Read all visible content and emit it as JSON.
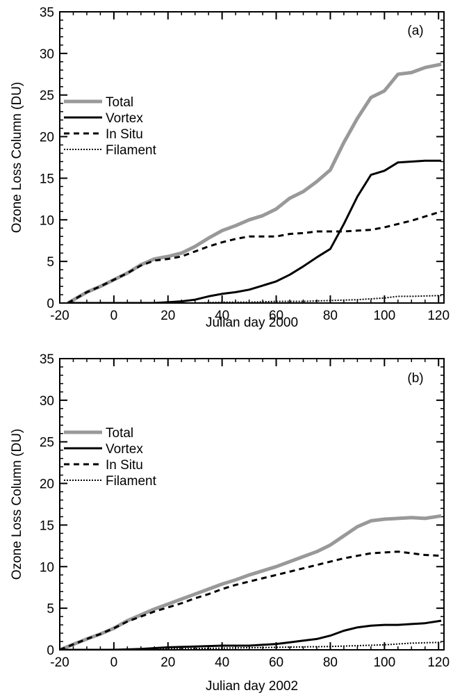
{
  "chart_data": [
    {
      "type": "line",
      "panel_label": "(a)",
      "xlabel": "Julian day 2000",
      "ylabel": "Ozone Loss Column (DU)",
      "xlim": [
        -20,
        122
      ],
      "ylim": [
        0,
        35
      ],
      "xticks": [
        -20,
        0,
        20,
        40,
        60,
        80,
        100,
        120
      ],
      "yticks": [
        0,
        5,
        10,
        15,
        20,
        25,
        30,
        35
      ],
      "legend_position": "left",
      "series": [
        {
          "name": "Total",
          "color": "#999999",
          "style": "solid-thick",
          "points": [
            [
              -17,
              0
            ],
            [
              -10,
              1.3
            ],
            [
              -5,
              2
            ],
            [
              0,
              2.8
            ],
            [
              5,
              3.6
            ],
            [
              10,
              4.6
            ],
            [
              15,
              5.3
            ],
            [
              20,
              5.6
            ],
            [
              25,
              6
            ],
            [
              30,
              6.8
            ],
            [
              35,
              7.8
            ],
            [
              40,
              8.7
            ],
            [
              45,
              9.3
            ],
            [
              50,
              10
            ],
            [
              55,
              10.5
            ],
            [
              60,
              11.3
            ],
            [
              65,
              12.6
            ],
            [
              70,
              13.4
            ],
            [
              75,
              14.6
            ],
            [
              80,
              16
            ],
            [
              85,
              19.3
            ],
            [
              90,
              22.2
            ],
            [
              95,
              24.7
            ],
            [
              100,
              25.5
            ],
            [
              105,
              27.5
            ],
            [
              110,
              27.7
            ],
            [
              115,
              28.3
            ],
            [
              121,
              28.7
            ]
          ]
        },
        {
          "name": "Vortex",
          "color": "#000000",
          "style": "solid",
          "points": [
            [
              -17,
              0
            ],
            [
              0,
              0
            ],
            [
              15,
              0
            ],
            [
              25,
              0.2
            ],
            [
              30,
              0.4
            ],
            [
              35,
              0.8
            ],
            [
              40,
              1.1
            ],
            [
              45,
              1.3
            ],
            [
              50,
              1.6
            ],
            [
              55,
              2.1
            ],
            [
              60,
              2.6
            ],
            [
              65,
              3.4
            ],
            [
              70,
              4.4
            ],
            [
              75,
              5.5
            ],
            [
              80,
              6.5
            ],
            [
              85,
              9.5
            ],
            [
              90,
              12.8
            ],
            [
              95,
              15.4
            ],
            [
              100,
              15.9
            ],
            [
              105,
              16.9
            ],
            [
              110,
              17
            ],
            [
              115,
              17.1
            ],
            [
              121,
              17.1
            ]
          ]
        },
        {
          "name": "In Situ",
          "color": "#000000",
          "style": "dashed",
          "points": [
            [
              -17,
              0
            ],
            [
              -10,
              1.3
            ],
            [
              -5,
              2
            ],
            [
              0,
              2.8
            ],
            [
              5,
              3.6
            ],
            [
              10,
              4.5
            ],
            [
              15,
              5.1
            ],
            [
              20,
              5.3
            ],
            [
              25,
              5.6
            ],
            [
              30,
              6.2
            ],
            [
              35,
              6.8
            ],
            [
              40,
              7.3
            ],
            [
              45,
              7.7
            ],
            [
              50,
              8
            ],
            [
              55,
              8
            ],
            [
              60,
              8
            ],
            [
              65,
              8.3
            ],
            [
              70,
              8.4
            ],
            [
              75,
              8.6
            ],
            [
              80,
              8.6
            ],
            [
              85,
              8.6
            ],
            [
              90,
              8.7
            ],
            [
              95,
              8.8
            ],
            [
              100,
              9.1
            ],
            [
              105,
              9.5
            ],
            [
              110,
              9.9
            ],
            [
              115,
              10.4
            ],
            [
              121,
              11
            ]
          ]
        },
        {
          "name": "Filament",
          "color": "#000000",
          "style": "dotted",
          "points": [
            [
              -17,
              0
            ],
            [
              30,
              0
            ],
            [
              40,
              0.1
            ],
            [
              50,
              0.1
            ],
            [
              60,
              0.2
            ],
            [
              70,
              0.2
            ],
            [
              80,
              0.3
            ],
            [
              90,
              0.4
            ],
            [
              100,
              0.6
            ],
            [
              105,
              0.8
            ],
            [
              110,
              0.8
            ],
            [
              121,
              0.9
            ]
          ]
        }
      ]
    },
    {
      "type": "line",
      "panel_label": "(b)",
      "xlabel": "Julian day 2002",
      "ylabel": "Ozone Loss Column (DU)",
      "xlim": [
        -20,
        122
      ],
      "ylim": [
        0,
        35
      ],
      "xticks": [
        -20,
        0,
        20,
        40,
        60,
        80,
        100,
        120
      ],
      "yticks": [
        0,
        5,
        10,
        15,
        20,
        25,
        30,
        35
      ],
      "legend_position": "left",
      "series": [
        {
          "name": "Total",
          "color": "#999999",
          "style": "solid-thick",
          "points": [
            [
              -20,
              0
            ],
            [
              -10,
              1.3
            ],
            [
              -5,
              1.9
            ],
            [
              0,
              2.6
            ],
            [
              5,
              3.5
            ],
            [
              10,
              4.2
            ],
            [
              15,
              4.9
            ],
            [
              20,
              5.5
            ],
            [
              25,
              6.1
            ],
            [
              30,
              6.7
            ],
            [
              35,
              7.3
            ],
            [
              40,
              7.9
            ],
            [
              45,
              8.4
            ],
            [
              50,
              9
            ],
            [
              55,
              9.5
            ],
            [
              60,
              10
            ],
            [
              65,
              10.6
            ],
            [
              70,
              11.2
            ],
            [
              75,
              11.8
            ],
            [
              80,
              12.6
            ],
            [
              85,
              13.7
            ],
            [
              90,
              14.8
            ],
            [
              95,
              15.5
            ],
            [
              100,
              15.7
            ],
            [
              105,
              15.8
            ],
            [
              110,
              15.9
            ],
            [
              115,
              15.8
            ],
            [
              121,
              16.1
            ]
          ]
        },
        {
          "name": "Vortex",
          "color": "#000000",
          "style": "solid",
          "points": [
            [
              -20,
              0
            ],
            [
              0,
              0
            ],
            [
              10,
              0.1
            ],
            [
              20,
              0.3
            ],
            [
              30,
              0.4
            ],
            [
              40,
              0.5
            ],
            [
              50,
              0.5
            ],
            [
              55,
              0.6
            ],
            [
              60,
              0.7
            ],
            [
              65,
              0.9
            ],
            [
              70,
              1.1
            ],
            [
              75,
              1.3
            ],
            [
              80,
              1.7
            ],
            [
              85,
              2.3
            ],
            [
              90,
              2.7
            ],
            [
              95,
              2.9
            ],
            [
              100,
              3
            ],
            [
              105,
              3
            ],
            [
              110,
              3.1
            ],
            [
              115,
              3.2
            ],
            [
              121,
              3.5
            ]
          ]
        },
        {
          "name": "In Situ",
          "color": "#000000",
          "style": "dashed",
          "points": [
            [
              -20,
              0
            ],
            [
              -10,
              1.3
            ],
            [
              -5,
              1.9
            ],
            [
              0,
              2.6
            ],
            [
              5,
              3.4
            ],
            [
              10,
              4
            ],
            [
              15,
              4.6
            ],
            [
              20,
              5.1
            ],
            [
              25,
              5.6
            ],
            [
              30,
              6.2
            ],
            [
              35,
              6.7
            ],
            [
              40,
              7.3
            ],
            [
              45,
              7.8
            ],
            [
              50,
              8.2
            ],
            [
              55,
              8.6
            ],
            [
              60,
              9
            ],
            [
              65,
              9.4
            ],
            [
              70,
              9.8
            ],
            [
              75,
              10.2
            ],
            [
              80,
              10.6
            ],
            [
              85,
              11
            ],
            [
              90,
              11.3
            ],
            [
              95,
              11.6
            ],
            [
              100,
              11.7
            ],
            [
              105,
              11.8
            ],
            [
              110,
              11.6
            ],
            [
              115,
              11.4
            ],
            [
              121,
              11.3
            ]
          ]
        },
        {
          "name": "Filament",
          "color": "#000000",
          "style": "dotted",
          "points": [
            [
              -20,
              0
            ],
            [
              20,
              0.1
            ],
            [
              40,
              0.2
            ],
            [
              60,
              0.3
            ],
            [
              80,
              0.4
            ],
            [
              90,
              0.5
            ],
            [
              100,
              0.6
            ],
            [
              110,
              0.8
            ],
            [
              121,
              0.9
            ]
          ]
        }
      ]
    }
  ]
}
